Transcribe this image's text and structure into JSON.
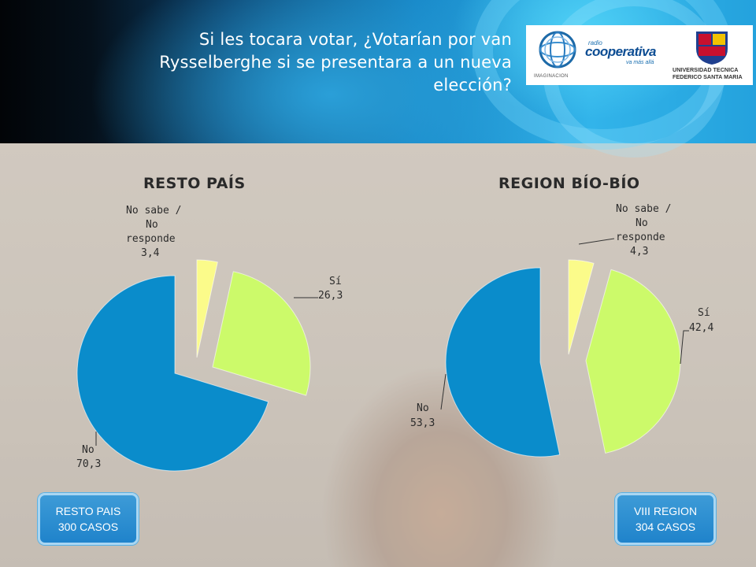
{
  "header": {
    "title": "Si les tocara votar, ¿Votarían por van Rysselberghe si se presentara a un nueva elección?"
  },
  "logos": {
    "imaginacion": "IMAGINACION",
    "cooperativa_radio": "radio",
    "cooperativa_name": "cooperativa",
    "cooperativa_tagline": "va más allá",
    "utfsm_line1": "UNIVERSIDAD TECNICA",
    "utfsm_line2": "FEDERICO SANTA MARIA"
  },
  "colors": {
    "no": "#0a8ccb",
    "si": "#ccfa6a",
    "nosabe": "#fbfb8a"
  },
  "chart_data": [
    {
      "type": "pie",
      "title": "RESTO PAÍS",
      "slices": [
        {
          "label": "No sabe / No responde",
          "value": 3.4,
          "display": "3,4"
        },
        {
          "label": "Sí",
          "value": 26.3,
          "display": "26,3"
        },
        {
          "label": "No",
          "value": 70.3,
          "display": "70,3"
        }
      ]
    },
    {
      "type": "pie",
      "title": "REGION BÍO-BÍO",
      "slices": [
        {
          "label": "No sabe / No responde",
          "value": 4.3,
          "display": "4,3"
        },
        {
          "label": "Sí",
          "value": 42.4,
          "display": "42,4"
        },
        {
          "label": "No",
          "value": 53.3,
          "display": "53,3"
        }
      ]
    }
  ],
  "badges": {
    "left": {
      "line1": "RESTO PAIS",
      "line2": "300 CASOS"
    },
    "right": {
      "line1": "VIII REGION",
      "line2": "304 CASOS"
    }
  }
}
